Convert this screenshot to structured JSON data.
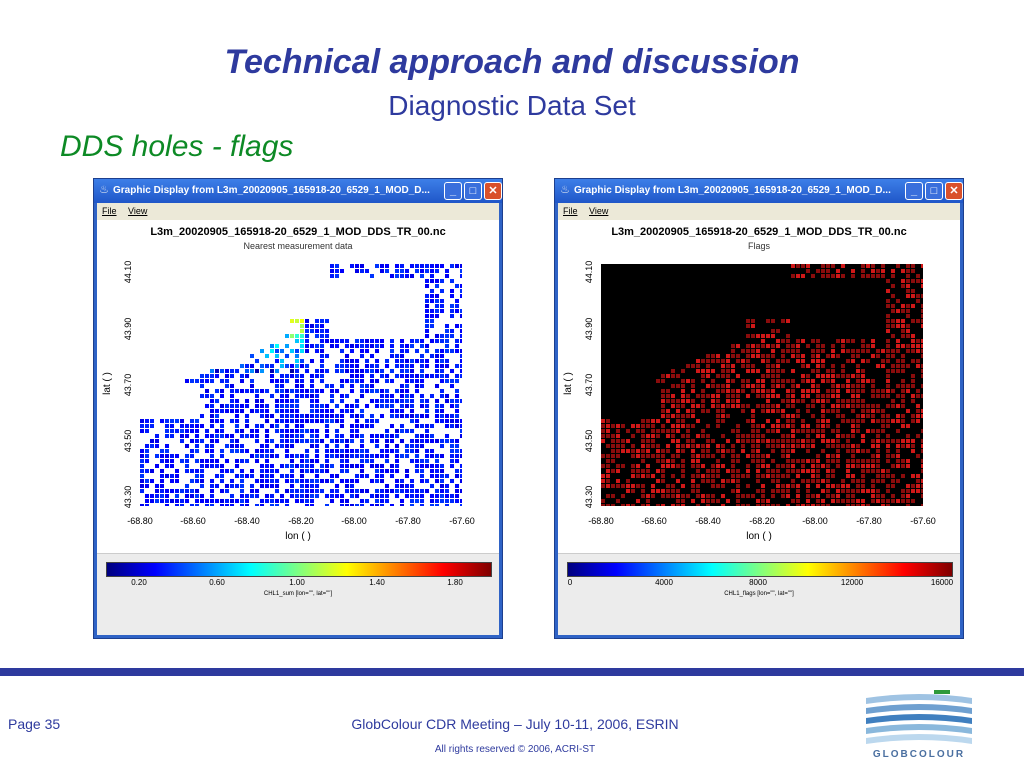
{
  "slide": {
    "title": "Technical approach and discussion",
    "subtitle": "Diagnostic Data Set",
    "section": "DDS holes - flags"
  },
  "windows": [
    {
      "title": "Graphic Display from L3m_20020905_165918-20_6529_1_MOD_D...",
      "menu": [
        "File",
        "View"
      ],
      "plot_title": "L3m_20020905_165918-20_6529_1_MOD_DDS_TR_00.nc",
      "plot_subtitle": "Nearest measurement data",
      "colorbar_ticks": [
        "0.20",
        "0.60",
        "1.00",
        "1.40",
        "1.80"
      ],
      "colorbar_label": "CHL1_sum [lon=\"\", lat=\"\"]"
    },
    {
      "title": "Graphic Display from L3m_20020905_165918-20_6529_1_MOD_D...",
      "menu": [
        "File",
        "View"
      ],
      "plot_title": "L3m_20020905_165918-20_6529_1_MOD_DDS_TR_00.nc",
      "plot_subtitle": "Flags",
      "colorbar_ticks": [
        "0",
        "4000",
        "8000",
        "12000",
        "16000"
      ],
      "colorbar_label": "CHL1_flags [lon=\"\", lat=\"\"]"
    }
  ],
  "axes": {
    "xlabel": "lon ( )",
    "ylabel": "lat ( )",
    "xticks": [
      "-68.80",
      "-68.60",
      "-68.40",
      "-68.20",
      "-68.00",
      "-67.80",
      "-67.60"
    ],
    "yticks": [
      "44.10",
      "43.90",
      "43.70",
      "43.50",
      "43.30"
    ]
  },
  "footer": {
    "page": "Page 35",
    "meeting": "GlobColour CDR Meeting – July 10-11, 2006, ESRIN",
    "rights": "All rights reserved © 2006, ACRI-ST",
    "logo_text": "GLOBCOLOUR"
  },
  "colors": {
    "title_blue": "#2e3a9e",
    "section_green": "#0d8a25",
    "window_frame": "#2f63c6",
    "flag_red": "#b01010"
  },
  "icons": {
    "window_app": "java-cup-icon",
    "minimize": "minimize-icon",
    "maximize": "maximize-icon",
    "close": "close-icon"
  }
}
